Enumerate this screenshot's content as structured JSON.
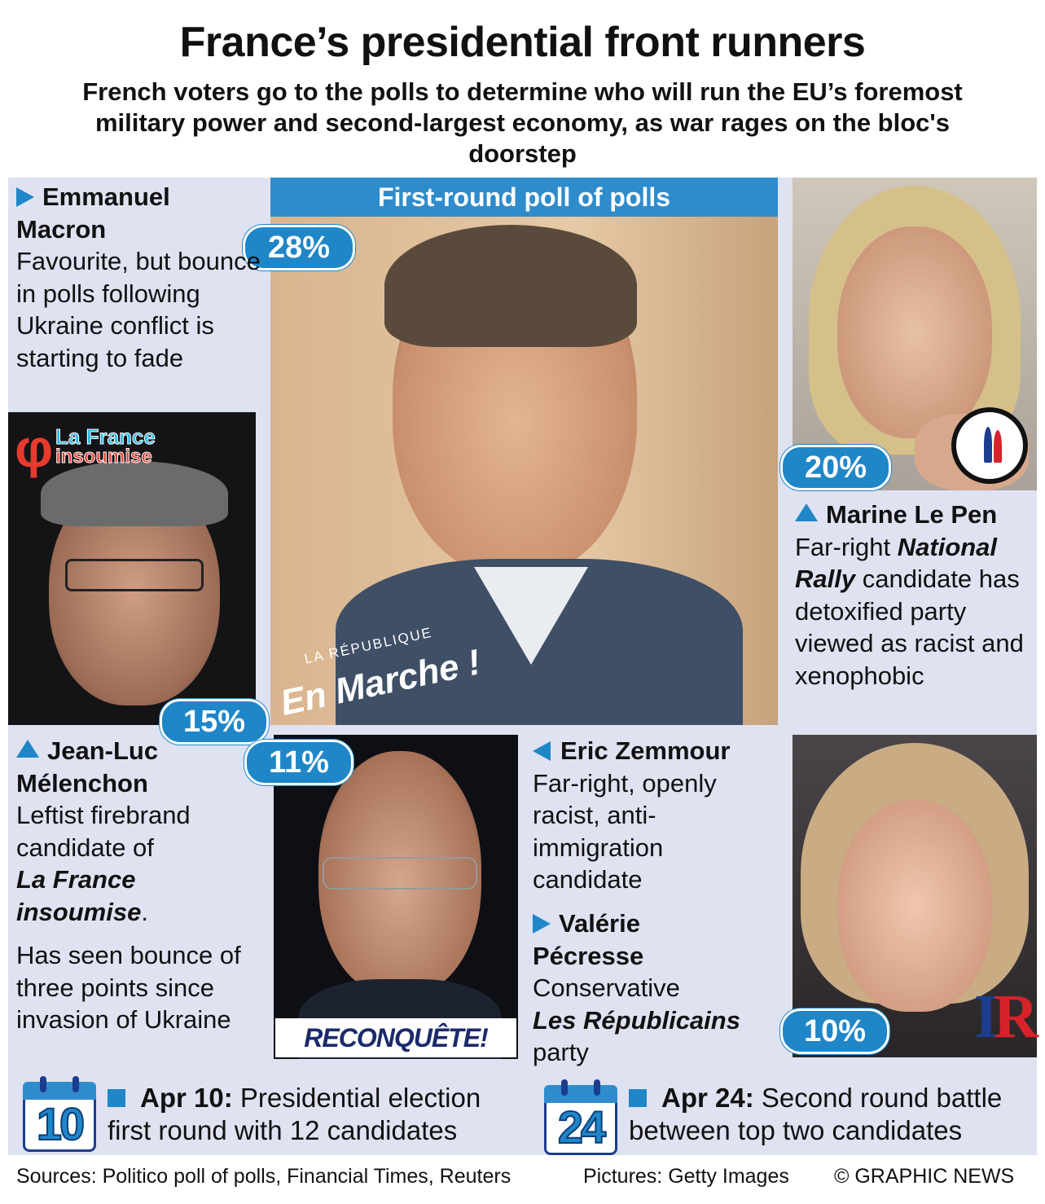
{
  "title": "France’s presidential front runners",
  "subtitle": "French voters go to the polls to determine who will run the EU’s foremost military power and second-largest economy, as war rages on the bloc's doorstep",
  "poll_header": "First-round poll of polls",
  "candidates": {
    "macron": {
      "name": "Emmanuel Macron",
      "name_line1": "Emmanuel",
      "name_line2": "Macron",
      "poll": "28%",
      "trend_icon": "triangle-right-icon",
      "description": "Favourite, but bounce in polls following Ukraine conflict is starting to fade",
      "party_logo_small": "LA RÉPUBLIQUE",
      "party_logo_big": "En Marche !"
    },
    "le_pen": {
      "name": "Marine Le Pen",
      "poll": "20%",
      "trend_icon": "triangle-up-icon",
      "desc_pre": "Far-right ",
      "desc_party": "National Rally",
      "desc_post": " candidate has detoxified party viewed as racist and xenophobic"
    },
    "melenchon": {
      "name_line1": "Jean-Luc",
      "name_line2": "Mélenchon",
      "poll": "15%",
      "trend_icon": "triangle-up-icon",
      "desc_pre": "Leftist firebrand candidate of",
      "desc_party": "La France insoumise",
      "desc_post": ".",
      "desc2": "Has seen bounce of three points since invasion of Ukraine",
      "party_logo_line1": "La France",
      "party_logo_line2": "insoumise"
    },
    "zemmour": {
      "name": "Eric Zemmour",
      "poll": "11%",
      "trend_icon": "triangle-left-icon",
      "description": "Far-right, openly racist, anti-immigration candidate",
      "party_logo": "RECONQUÊTE!"
    },
    "pecresse": {
      "name_line1": "Valérie",
      "name_line2": "Pécresse",
      "poll": "10%",
      "trend_icon": "triangle-right-icon",
      "desc1": "Conservative",
      "desc_party": "Les Républicains",
      "desc_post": "party"
    }
  },
  "dates": [
    {
      "day": "10",
      "label": "Apr 10:",
      "text": "Presidential election first round with 12 candidates"
    },
    {
      "day": "24",
      "label": "Apr 24:",
      "text": "Second round battle between top two candidates"
    }
  ],
  "footer": {
    "sources": "Sources: Politico poll of polls, Financial Times, Reuters",
    "pictures": "Pictures: Getty Images",
    "credit": "© GRAPHIC NEWS"
  },
  "colors": {
    "accent": "#1f86c8",
    "panel": "#dfe2f1",
    "header_bar": "#2f8ccc"
  }
}
